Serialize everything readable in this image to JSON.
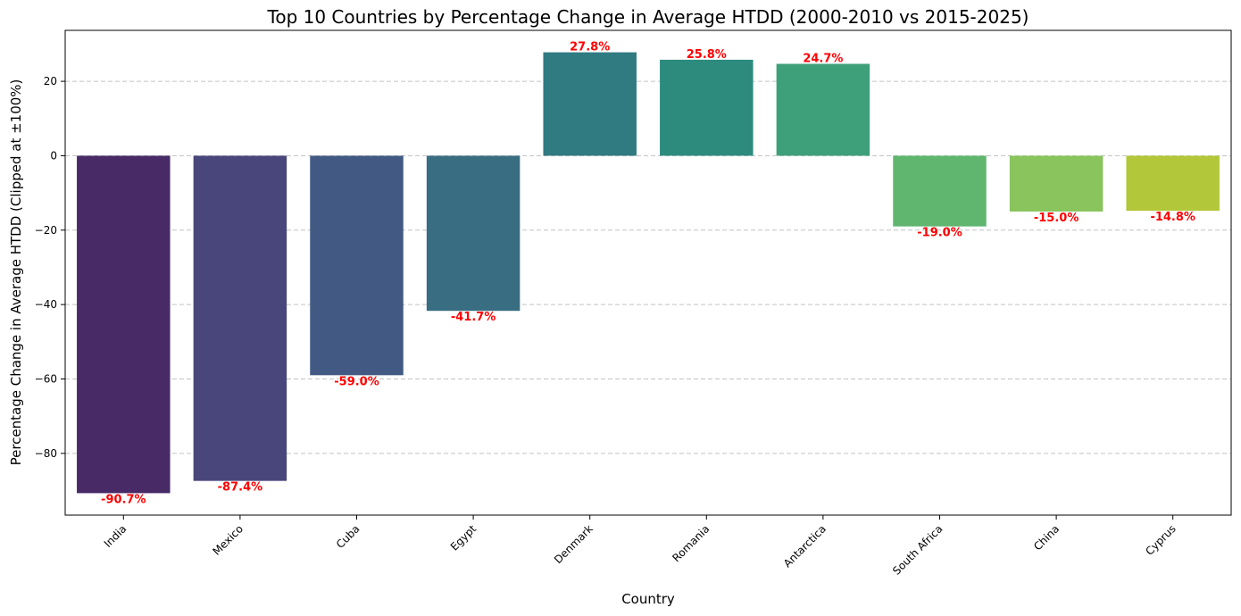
{
  "chart_data": {
    "type": "bar",
    "title": "Top 10 Countries by Percentage Change in Average HTDD (2000-2010 vs 2015-2025)",
    "xlabel": "Country",
    "ylabel": "Percentage Change in Average HTDD (Clipped at ±100%)",
    "categories": [
      "India",
      "Mexico",
      "Cuba",
      "Egypt",
      "Denmark",
      "Romania",
      "Antarctica",
      "South Africa",
      "China",
      "Cyprus"
    ],
    "values": [
      -90.7,
      -87.4,
      -59.0,
      -41.7,
      27.8,
      25.8,
      24.7,
      -19.0,
      -15.0,
      -14.8
    ],
    "data_labels": [
      "-90.7%",
      "-87.4%",
      "-59.0%",
      "-41.7%",
      "27.8%",
      "25.8%",
      "24.7%",
      "-19.0%",
      "-15.0%",
      "-14.8%"
    ],
    "colors": [
      "#482a67",
      "#49467b",
      "#425a83",
      "#396d82",
      "#307a82",
      "#2d8b7e",
      "#3ea07a",
      "#60b56f",
      "#89c45d",
      "#b2c83a"
    ],
    "label_color": "#ff0000",
    "ylim": [
      -96.6,
      33.7
    ],
    "yticks": [
      20,
      0,
      -20,
      -40,
      -60,
      -80
    ],
    "ytick_labels": [
      "20",
      "0",
      "−20",
      "−40",
      "−60",
      "−80"
    ],
    "grid": "horizontal-dashed",
    "legend": "none"
  }
}
